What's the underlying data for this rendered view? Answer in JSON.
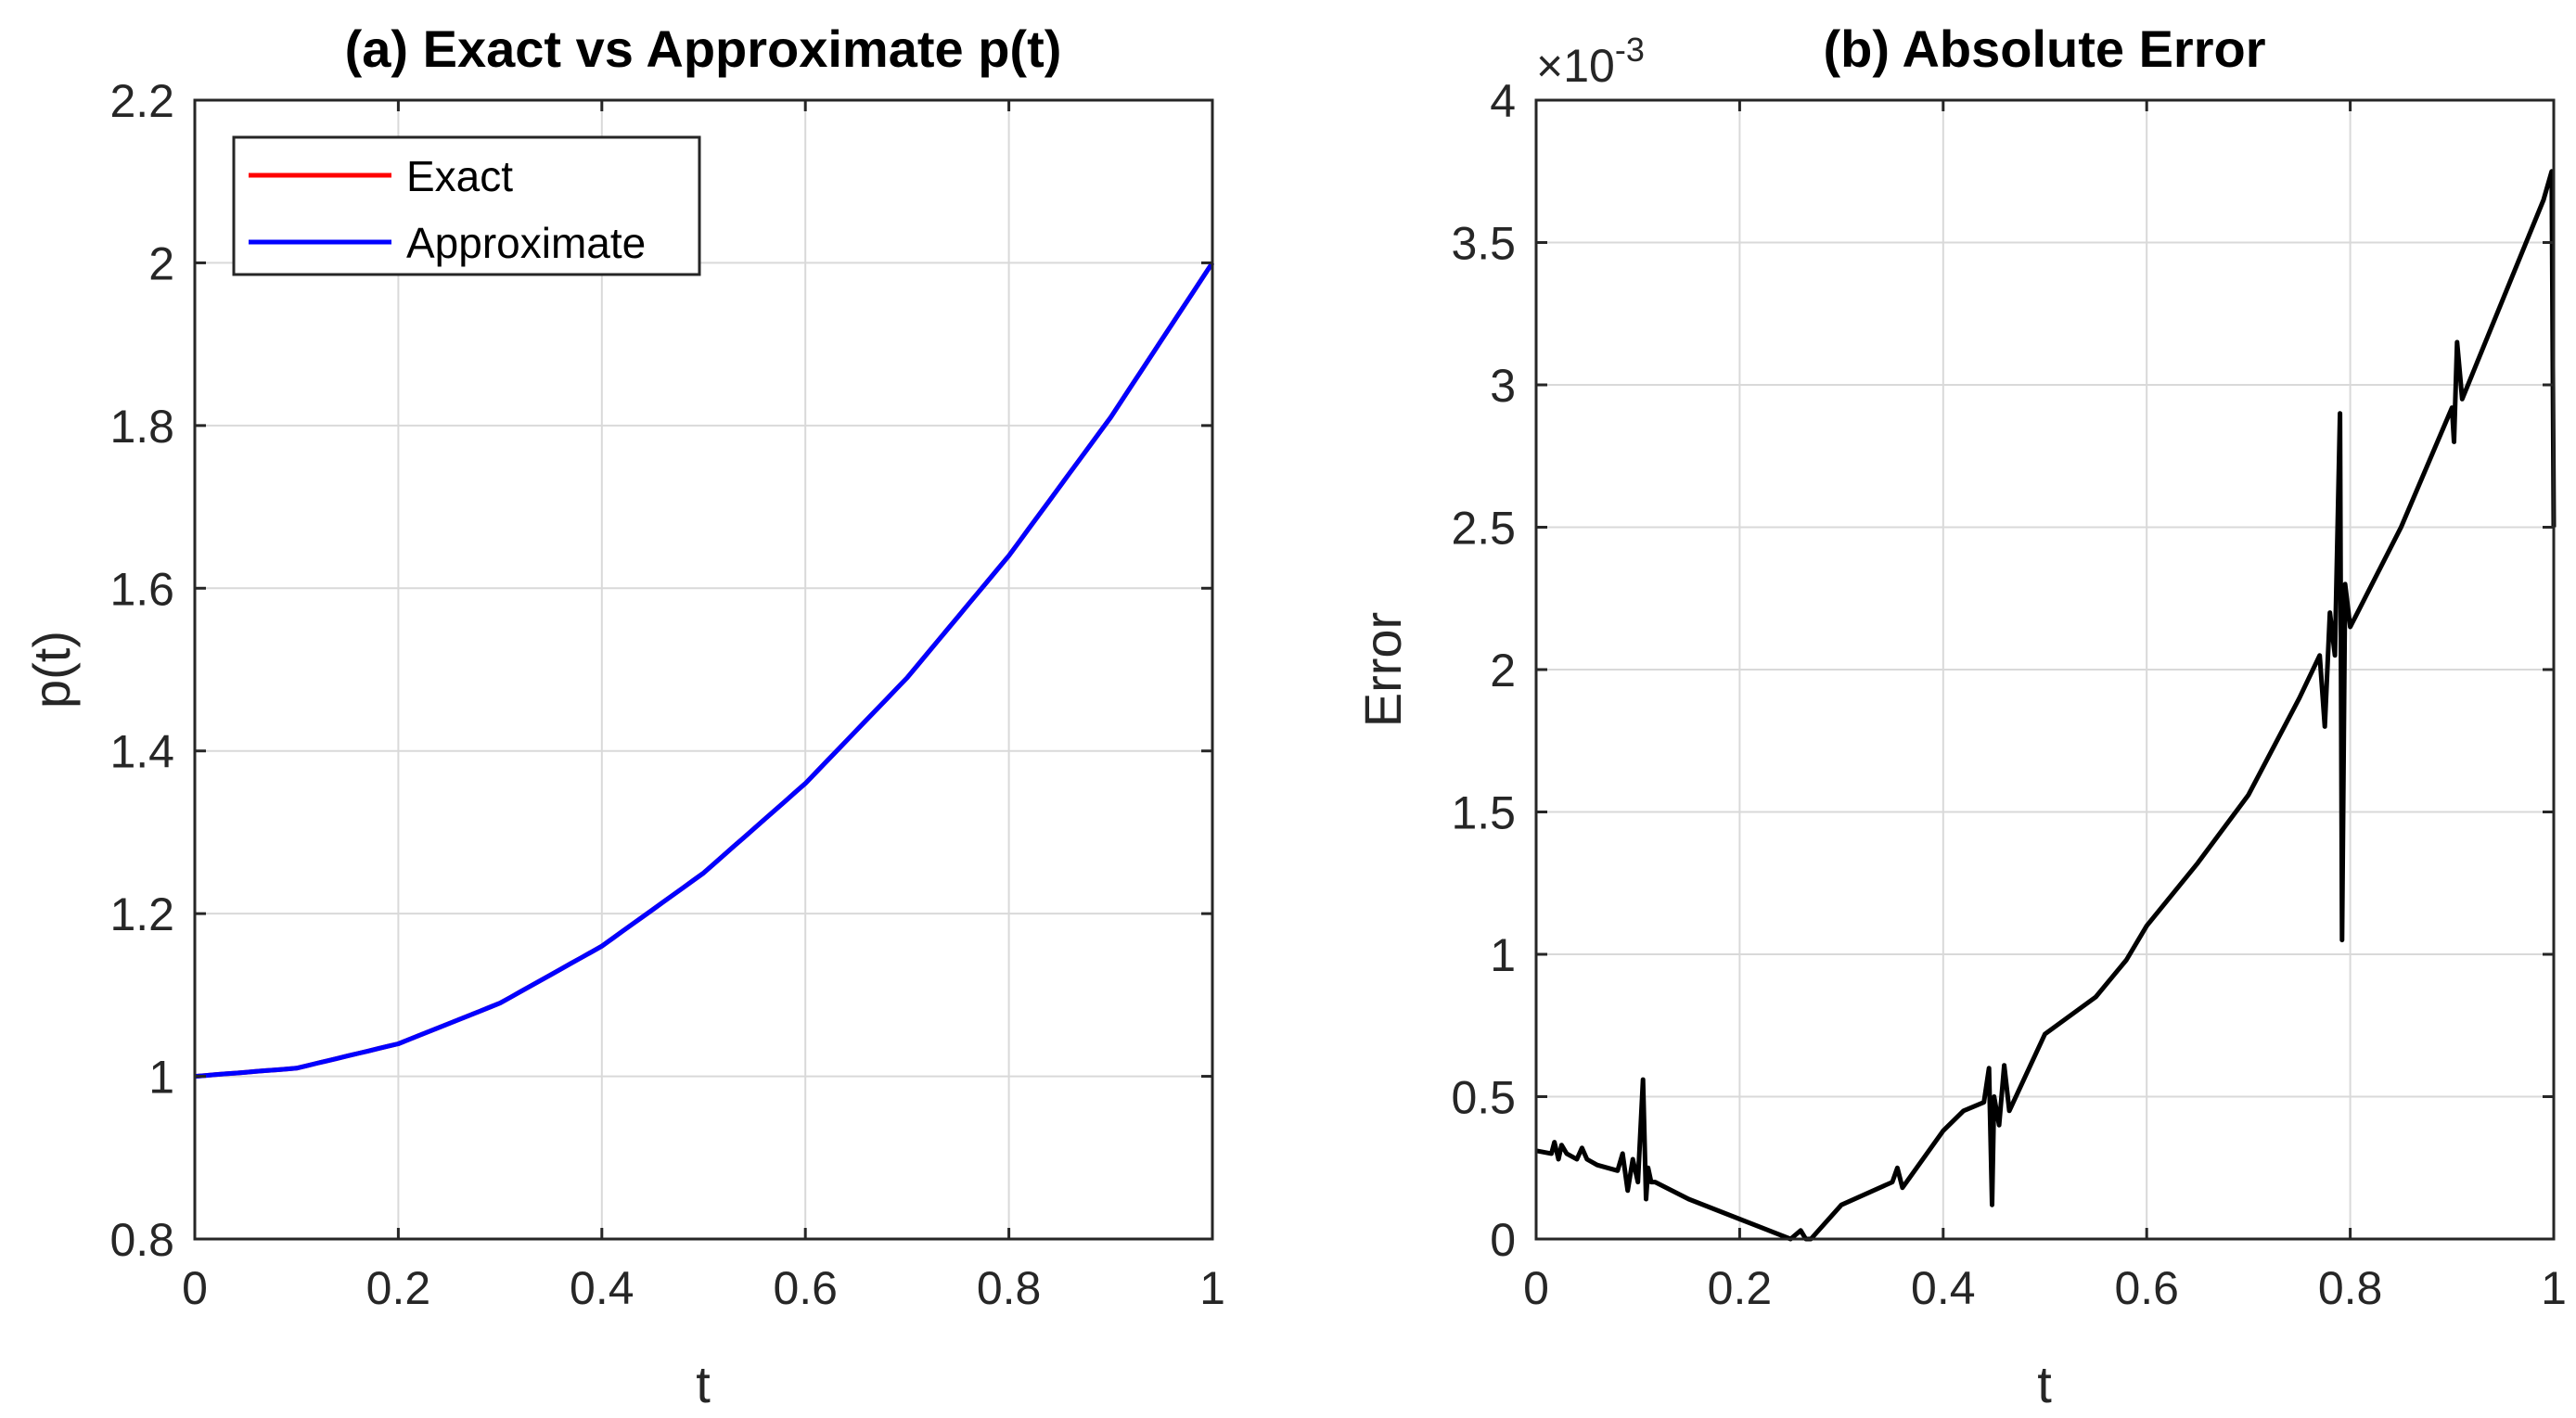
{
  "chart_data": [
    {
      "type": "line",
      "title": "(a) Exact vs Approximate p(t)",
      "xlabel": "t",
      "ylabel": "p(t)",
      "xlim": [
        0,
        1
      ],
      "ylim": [
        0.8,
        2.2
      ],
      "xticks": [
        0,
        0.2,
        0.4,
        0.6,
        0.8,
        1
      ],
      "xtick_labels": [
        "0",
        "0.2",
        "0.4",
        "0.6",
        "0.8",
        "1"
      ],
      "yticks": [
        0.8,
        1,
        1.2,
        1.4,
        1.6,
        1.8,
        2,
        2.2
      ],
      "ytick_labels": [
        "0.8",
        "1",
        "1.2",
        "1.4",
        "1.6",
        "1.8",
        "2",
        "2.2"
      ],
      "grid": true,
      "legend_location": "top-left",
      "x": [
        0,
        0.1,
        0.2,
        0.3,
        0.4,
        0.5,
        0.6,
        0.7,
        0.8,
        0.9,
        1
      ],
      "series": [
        {
          "name": "Exact",
          "color": "#ff0000",
          "values": [
            1,
            1.01,
            1.04,
            1.09,
            1.16,
            1.25,
            1.36,
            1.49,
            1.64,
            1.81,
            2
          ]
        },
        {
          "name": "Approximate",
          "color": "#0000ff",
          "values": [
            1,
            1.01,
            1.04,
            1.09,
            1.16,
            1.25,
            1.36,
            1.49,
            1.64,
            1.81,
            2
          ]
        }
      ]
    },
    {
      "type": "line",
      "title": "(b) Absolute Error",
      "xlabel": "t",
      "ylabel": "Error",
      "exponent_label": "×10",
      "exponent_power": "-3",
      "xlim": [
        0,
        1
      ],
      "ylim": [
        0,
        4
      ],
      "xticks": [
        0,
        0.2,
        0.4,
        0.6,
        0.8,
        1
      ],
      "xtick_labels": [
        "0",
        "0.2",
        "0.4",
        "0.6",
        "0.8",
        "1"
      ],
      "yticks": [
        0,
        0.5,
        1,
        1.5,
        2,
        2.5,
        3,
        3.5,
        4
      ],
      "ytick_labels": [
        "0",
        "0.5",
        "1",
        "1.5",
        "2",
        "2.5",
        "3",
        "3.5",
        "4"
      ],
      "grid": true,
      "series": [
        {
          "name": "Error",
          "color": "#000000",
          "x": [
            0,
            0.015,
            0.018,
            0.022,
            0.025,
            0.03,
            0.04,
            0.045,
            0.05,
            0.06,
            0.08,
            0.085,
            0.09,
            0.095,
            0.1,
            0.105,
            0.108,
            0.11,
            0.113,
            0.117,
            0.15,
            0.2,
            0.25,
            0.26,
            0.265,
            0.27,
            0.3,
            0.35,
            0.355,
            0.36,
            0.4,
            0.42,
            0.44,
            0.445,
            0.448,
            0.45,
            0.455,
            0.46,
            0.465,
            0.5,
            0.55,
            0.58,
            0.6,
            0.65,
            0.7,
            0.75,
            0.77,
            0.775,
            0.78,
            0.785,
            0.79,
            0.792,
            0.795,
            0.8,
            0.85,
            0.9,
            0.902,
            0.905,
            0.91,
            0.95,
            0.99,
            0.998,
            1.0
          ],
          "values": [
            0.31,
            0.3,
            0.34,
            0.28,
            0.33,
            0.3,
            0.28,
            0.32,
            0.28,
            0.26,
            0.24,
            0.3,
            0.17,
            0.28,
            0.2,
            0.56,
            0.14,
            0.25,
            0.2,
            0.2,
            0.14,
            0.07,
            0.0,
            0.03,
            0.0,
            0.0,
            0.12,
            0.2,
            0.25,
            0.18,
            0.38,
            0.45,
            0.48,
            0.6,
            0.12,
            0.5,
            0.4,
            0.61,
            0.45,
            0.72,
            0.85,
            0.98,
            1.1,
            1.32,
            1.56,
            1.9,
            2.05,
            1.8,
            2.2,
            2.05,
            2.9,
            1.05,
            2.3,
            2.15,
            2.5,
            2.92,
            2.8,
            3.15,
            2.95,
            3.3,
            3.65,
            3.75,
            2.5
          ]
        }
      ]
    }
  ]
}
